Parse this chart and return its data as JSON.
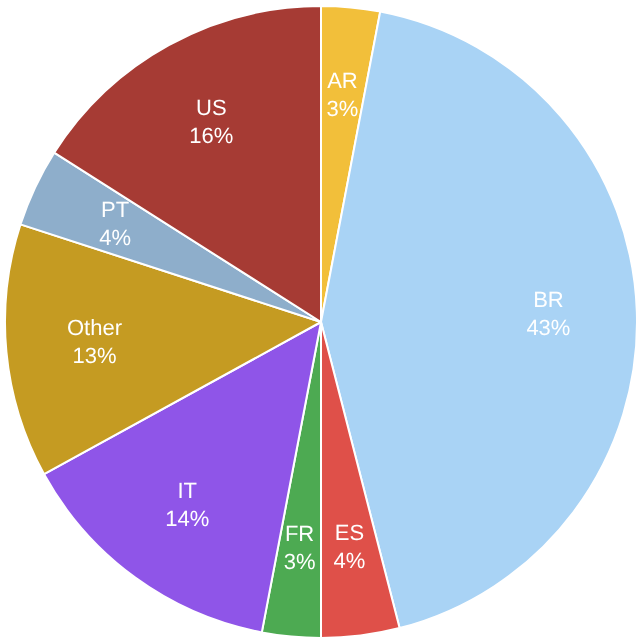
{
  "chart_data": {
    "type": "pie",
    "categories": [
      "AR",
      "BR",
      "ES",
      "FR",
      "IT",
      "Other",
      "PT",
      "US"
    ],
    "values": [
      3,
      43,
      4,
      3,
      14,
      13,
      4,
      16
    ],
    "colors": [
      "#f2bf3a",
      "#a9d3f5",
      "#df5049",
      "#4daa52",
      "#8f55e8",
      "#c59b22",
      "#8eaecb",
      "#a63b34"
    ],
    "value_labels": [
      "3%",
      "43%",
      "4%",
      "3%",
      "14%",
      "13%",
      "4%",
      "16%"
    ],
    "legend": false
  }
}
